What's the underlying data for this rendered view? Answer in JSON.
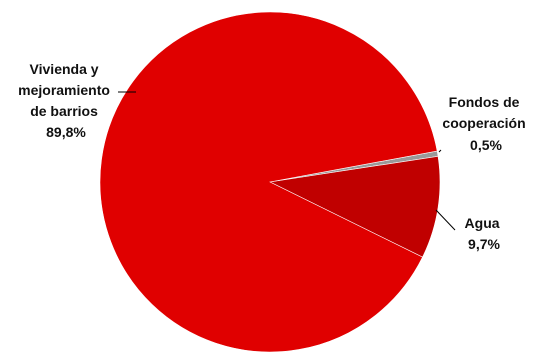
{
  "chart_data": {
    "type": "pie",
    "title": "",
    "start_angle_deg": 10.5,
    "direction": "clockwise",
    "slices": [
      {
        "key": "fondos",
        "label_lines": [
          "Fondos de",
          "cooperación"
        ],
        "percent_label": "0,5%",
        "value": 0.5,
        "color": "#9a9a9a"
      },
      {
        "key": "agua",
        "label_lines": [
          "Agua"
        ],
        "percent_label": "9,7%",
        "value": 9.7,
        "color": "#c00000"
      },
      {
        "key": "vivienda",
        "label_lines": [
          "Vivienda y",
          "mejoramiento",
          "de barrios"
        ],
        "percent_label": "89,8%",
        "value": 89.8,
        "color": "#e00000"
      }
    ]
  }
}
